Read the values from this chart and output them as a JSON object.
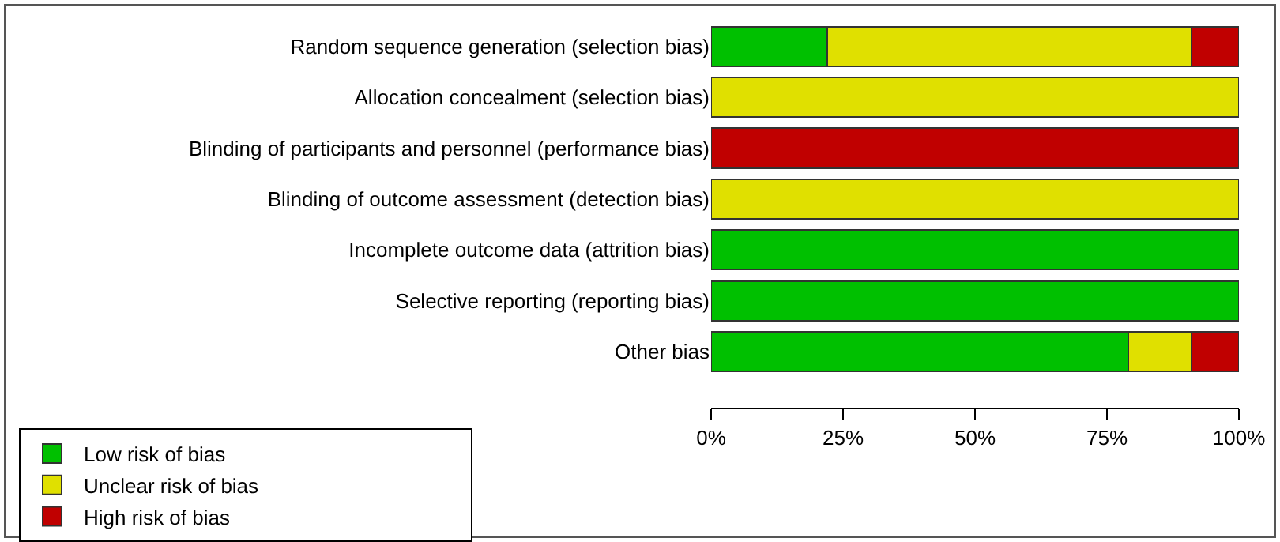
{
  "chart_data": {
    "type": "bar",
    "orientation": "horizontal",
    "stacked": true,
    "categories": [
      "Random sequence generation (selection bias)",
      "Allocation concealment (selection bias)",
      "Blinding of participants and personnel (performance bias)",
      "Blinding of outcome assessment (detection bias)",
      "Incomplete outcome data (attrition bias)",
      "Selective reporting (reporting bias)",
      "Other bias"
    ],
    "series": [
      {
        "name": "Low risk of bias",
        "color": "#00c000",
        "values": [
          22,
          0,
          0,
          0,
          100,
          100,
          79
        ]
      },
      {
        "name": "Unclear risk of bias",
        "color": "#e0e000",
        "values": [
          69,
          100,
          0,
          100,
          0,
          0,
          12
        ]
      },
      {
        "name": "High risk of bias",
        "color": "#c00000",
        "values": [
          9,
          0,
          100,
          0,
          0,
          0,
          9
        ]
      }
    ],
    "xlim": [
      0,
      100
    ],
    "xticks": [
      {
        "value": 0,
        "label": "0%"
      },
      {
        "value": 25,
        "label": "25%"
      },
      {
        "value": 50,
        "label": "50%"
      },
      {
        "value": 75,
        "label": "75%"
      },
      {
        "value": 100,
        "label": "100%"
      }
    ],
    "grid": false,
    "legend": "bottom"
  }
}
